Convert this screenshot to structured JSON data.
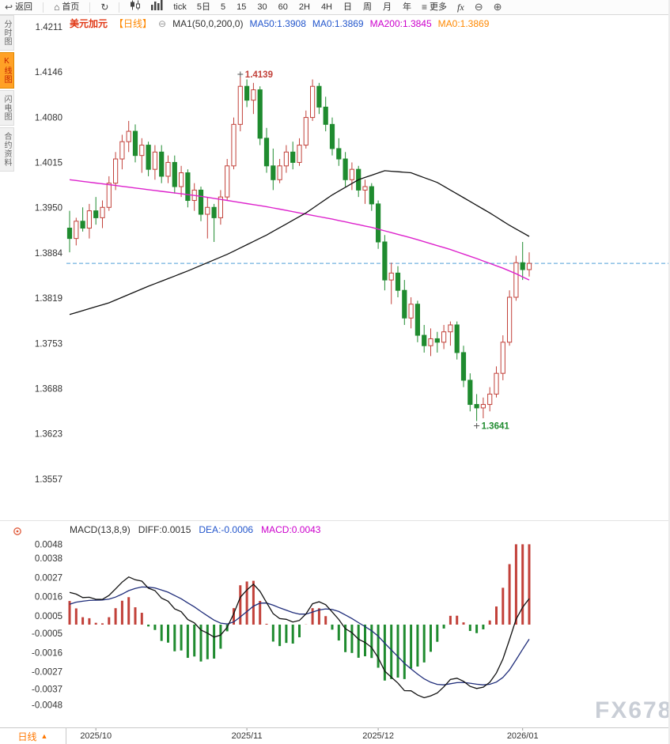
{
  "toolbar": {
    "back_label": "返回",
    "home_label": "首页",
    "tick_label": "tick",
    "five_day_label": "5日",
    "intervals": [
      "5",
      "15",
      "30",
      "60",
      "2H",
      "4H",
      "日",
      "周",
      "月",
      "年"
    ],
    "more_label": "更多",
    "fx_label": "fx"
  },
  "sidebar": {
    "tabs": [
      {
        "label": "分时图",
        "active": false
      },
      {
        "label": "K线图",
        "active": true
      },
      {
        "label": "闪电图",
        "active": false
      },
      {
        "label": "合约资料",
        "active": false
      }
    ]
  },
  "legend": {
    "symbol": "美元加元",
    "period": "【日线】",
    "ma_settings": "MA1(50,0,200,0)",
    "ma50": "MA50:1.3908",
    "ma0_a": "MA0:1.3869",
    "ma200": "MA200:1.3845",
    "ma0_b": "MA0:1.3869"
  },
  "macd_legend": {
    "title": "MACD(13,8,9)",
    "diff": "DIFF:0.0015",
    "dea": "DEA:-0.0006",
    "macd": "MACD:0.0043"
  },
  "bottom_bar": {
    "period_label": "日线",
    "arrow": "▲"
  },
  "watermark": "FX678",
  "chart_data": {
    "type": "candlestick",
    "symbol": "美元加元",
    "timeframe": "日线",
    "price_axis": {
      "max": 1.4211,
      "min": 1.3557,
      "ticks": [
        1.4211,
        1.4146,
        1.408,
        1.4015,
        1.395,
        1.3884,
        1.3819,
        1.3753,
        1.3688,
        1.3623,
        1.3557
      ]
    },
    "current_price": 1.3869,
    "annotations": {
      "high": {
        "index": 26,
        "value": 1.4139
      },
      "low": {
        "index": 62,
        "value": 1.3641
      }
    },
    "month_labels": [
      {
        "index": 4,
        "label": "2025/10"
      },
      {
        "index": 27,
        "label": "2025/11"
      },
      {
        "index": 47,
        "label": "2025/12"
      },
      {
        "index": 69,
        "label": "2026/01"
      }
    ],
    "candles": [
      [
        1.392,
        1.3945,
        1.3885,
        1.3905
      ],
      [
        1.3905,
        1.3935,
        1.3895,
        1.393
      ],
      [
        1.393,
        1.395,
        1.3915,
        1.392
      ],
      [
        1.392,
        1.3955,
        1.3905,
        1.3945
      ],
      [
        1.3945,
        1.3965,
        1.3925,
        1.3935
      ],
      [
        1.3935,
        1.396,
        1.392,
        1.395
      ],
      [
        1.395,
        1.3995,
        1.3945,
        1.3985
      ],
      [
        1.3985,
        1.403,
        1.3975,
        1.402
      ],
      [
        1.402,
        1.4055,
        1.4005,
        1.4045
      ],
      [
        1.4045,
        1.4075,
        1.403,
        1.406
      ],
      [
        1.406,
        1.407,
        1.4015,
        1.4025
      ],
      [
        1.4025,
        1.405,
        1.4,
        1.404
      ],
      [
        1.404,
        1.4045,
        1.3995,
        1.4005
      ],
      [
        1.4005,
        1.404,
        1.399,
        1.403
      ],
      [
        1.403,
        1.404,
        1.3985,
        1.3995
      ],
      [
        1.3995,
        1.4025,
        1.3985,
        1.4015
      ],
      [
        1.4015,
        1.4025,
        1.397,
        1.398
      ],
      [
        1.398,
        1.401,
        1.3965,
        1.4
      ],
      [
        1.4,
        1.4005,
        1.395,
        1.396
      ],
      [
        1.396,
        1.3985,
        1.3945,
        1.3975
      ],
      [
        1.3975,
        1.398,
        1.393,
        1.394
      ],
      [
        1.394,
        1.3965,
        1.3905,
        1.395
      ],
      [
        1.395,
        1.3955,
        1.39,
        1.3935
      ],
      [
        1.3935,
        1.3975,
        1.3925,
        1.3965
      ],
      [
        1.3965,
        1.402,
        1.396,
        1.401
      ],
      [
        1.401,
        1.408,
        1.4005,
        1.407
      ],
      [
        1.407,
        1.4139,
        1.406,
        1.4125
      ],
      [
        1.4125,
        1.4135,
        1.4095,
        1.4105
      ],
      [
        1.4105,
        1.413,
        1.4085,
        1.412
      ],
      [
        1.412,
        1.4125,
        1.404,
        1.405
      ],
      [
        1.405,
        1.4065,
        1.4,
        1.401
      ],
      [
        1.401,
        1.4035,
        1.3975,
        1.399
      ],
      [
        1.399,
        1.402,
        1.3985,
        1.401
      ],
      [
        1.401,
        1.404,
        1.4,
        1.403
      ],
      [
        1.403,
        1.4045,
        1.4005,
        1.4015
      ],
      [
        1.4015,
        1.405,
        1.401,
        1.404
      ],
      [
        1.404,
        1.409,
        1.4035,
        1.408
      ],
      [
        1.408,
        1.4135,
        1.4075,
        1.4125
      ],
      [
        1.4125,
        1.413,
        1.4085,
        1.4095
      ],
      [
        1.4095,
        1.411,
        1.406,
        1.407
      ],
      [
        1.407,
        1.408,
        1.4025,
        1.4035
      ],
      [
        1.4035,
        1.405,
        1.401,
        1.402
      ],
      [
        1.402,
        1.403,
        1.398,
        1.399
      ],
      [
        1.399,
        1.4015,
        1.3975,
        1.4005
      ],
      [
        1.4005,
        1.401,
        1.3965,
        1.3975
      ],
      [
        1.3975,
        1.399,
        1.3955,
        1.398
      ],
      [
        1.398,
        1.3985,
        1.3945,
        1.3955
      ],
      [
        1.3955,
        1.396,
        1.389,
        1.39
      ],
      [
        1.39,
        1.391,
        1.383,
        1.3845
      ],
      [
        1.3845,
        1.387,
        1.381,
        1.3855
      ],
      [
        1.3855,
        1.3865,
        1.382,
        1.383
      ],
      [
        1.383,
        1.3845,
        1.378,
        1.379
      ],
      [
        1.379,
        1.382,
        1.3775,
        1.381
      ],
      [
        1.381,
        1.3815,
        1.3755,
        1.3765
      ],
      [
        1.3765,
        1.378,
        1.374,
        1.375
      ],
      [
        1.375,
        1.3775,
        1.3735,
        1.376
      ],
      [
        1.376,
        1.377,
        1.374,
        1.3755
      ],
      [
        1.3755,
        1.378,
        1.3745,
        1.377
      ],
      [
        1.377,
        1.3785,
        1.375,
        1.378
      ],
      [
        1.378,
        1.3785,
        1.373,
        1.374
      ],
      [
        1.374,
        1.375,
        1.369,
        1.37
      ],
      [
        1.37,
        1.371,
        1.3655,
        1.3665
      ],
      [
        1.3665,
        1.368,
        1.3641,
        1.366
      ],
      [
        1.366,
        1.3675,
        1.3645,
        1.3665
      ],
      [
        1.3665,
        1.369,
        1.3655,
        1.368
      ],
      [
        1.368,
        1.372,
        1.3675,
        1.371
      ],
      [
        1.371,
        1.3765,
        1.37,
        1.3755
      ],
      [
        1.3755,
        1.383,
        1.375,
        1.382
      ],
      [
        1.382,
        1.388,
        1.3815,
        1.387
      ],
      [
        1.387,
        1.39,
        1.3845,
        1.386
      ],
      [
        1.386,
        1.3885,
        1.385,
        1.3869
      ]
    ],
    "ma50": {
      "anchors": [
        [
          0,
          1.3795
        ],
        [
          6,
          1.3812
        ],
        [
          12,
          1.3836
        ],
        [
          18,
          1.3858
        ],
        [
          24,
          1.3882
        ],
        [
          30,
          1.391
        ],
        [
          36,
          1.3942
        ],
        [
          40,
          1.3968
        ],
        [
          44,
          1.399
        ],
        [
          48,
          1.4003
        ],
        [
          52,
          1.4
        ],
        [
          56,
          1.3986
        ],
        [
          60,
          1.3964
        ],
        [
          64,
          1.3942
        ],
        [
          67,
          1.3924
        ],
        [
          70,
          1.3908
        ]
      ]
    },
    "ma200": {
      "anchors": [
        [
          0,
          1.399
        ],
        [
          10,
          1.3978
        ],
        [
          20,
          1.3966
        ],
        [
          30,
          1.3951
        ],
        [
          40,
          1.3933
        ],
        [
          46,
          1.3921
        ],
        [
          52,
          1.3906
        ],
        [
          58,
          1.3889
        ],
        [
          62,
          1.3876
        ],
        [
          66,
          1.3862
        ],
        [
          68,
          1.3854
        ],
        [
          70,
          1.3845
        ]
      ]
    },
    "macd": {
      "params_label": "(13,8,9)",
      "short": 8,
      "long": 13,
      "signal": 9,
      "seed_short": 1.391,
      "seed_long": 1.3888,
      "seed_dea": 0.001,
      "axis_ticks": [
        0.0048,
        0.0038,
        0.0027,
        0.0016,
        0.0005,
        -0.0005,
        -0.0016,
        -0.0027,
        -0.0037,
        -0.0048
      ],
      "diff_display": 0.0015,
      "dea_display": -0.0006,
      "macd_display": 0.0043
    },
    "colors": {
      "up": "#c2413a",
      "down": "#1f8b2f",
      "ma50": "#111111",
      "ma200": "#dd22cc",
      "price_line": "#4f9fd8",
      "diff_line": "#111111",
      "dea_line": "#1f2d7a",
      "axis_text": "#333333",
      "watermark": "#c9ced6"
    }
  }
}
